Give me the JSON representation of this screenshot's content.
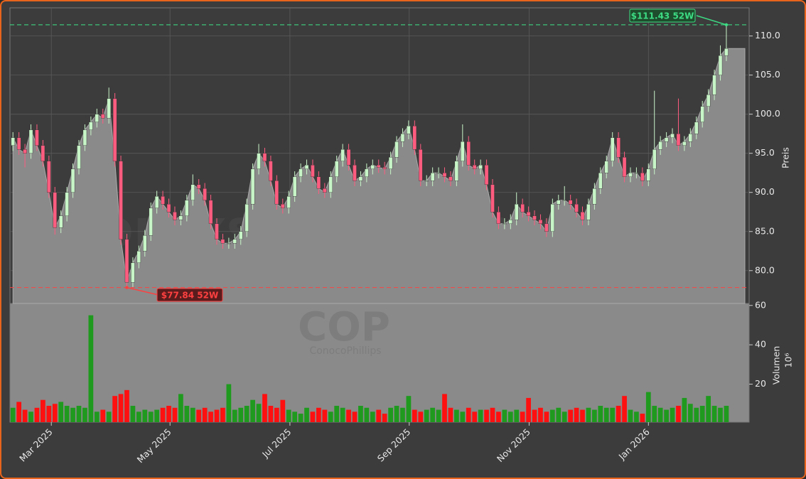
{
  "chart_data": {
    "type": "candlestick",
    "watermark": "forexsignale.trade",
    "symbol": "COP",
    "company": "ConocoPhillips",
    "y_label": "Preis",
    "y2_label": "Volumen",
    "y2_multiplier": "10⁶",
    "up_color": "#c8f5c8",
    "down_color": "#ff5c80",
    "volume_up_color": "#1f9a1f",
    "volume_down_color": "#ff1010",
    "area_color": "#8a8a8a",
    "grid": true,
    "xlim": [
      -0.5,
      122.8
    ],
    "xticks": [
      {
        "value": 6.4,
        "label": "Mar 2025"
      },
      {
        "value": 26.2,
        "label": "May 2025"
      },
      {
        "value": 46.2,
        "label": "Jul 2025"
      },
      {
        "value": 66.1,
        "label": "Sep 2025"
      },
      {
        "value": 86.1,
        "label": "Nov 2025"
      },
      {
        "value": 106,
        "label": "Jan 2026"
      }
    ],
    "ylim": [
      75.8,
      113.6
    ],
    "yticks": [
      {
        "value": 80,
        "label": "80.0"
      },
      {
        "value": 85,
        "label": "85.0"
      },
      {
        "value": 90,
        "label": "90.0"
      },
      {
        "value": 95,
        "label": "95.0"
      },
      {
        "value": 100,
        "label": "100.0"
      },
      {
        "value": 105,
        "label": "105.0"
      },
      {
        "value": 110,
        "label": "110.0"
      }
    ],
    "y2lim": [
      0.7,
      61
    ],
    "y2ticks": [
      20,
      40,
      60
    ],
    "annotations": [
      {
        "text": "$111.43 52W",
        "value": 111.43,
        "color": "#3ddc84"
      },
      {
        "text": "$77.84 52W",
        "value": 77.84,
        "color": "#ff4040"
      }
    ],
    "open": [
      96,
      97,
      95.5,
      95,
      98,
      96,
      94,
      90,
      85.5,
      87,
      90,
      93,
      96,
      98,
      99,
      100,
      99.5,
      102,
      94,
      84,
      78.5,
      81,
      82.5,
      84.5,
      88,
      89.5,
      88.5,
      87.5,
      86.5,
      87,
      89,
      91,
      90.5,
      89,
      86,
      84,
      83.5,
      83.5,
      84,
      85,
      88.5,
      93,
      95,
      94,
      91.5,
      88.5,
      88,
      89.5,
      92,
      93,
      93.5,
      92,
      90.5,
      90,
      92,
      94,
      95.5,
      93.5,
      91.5,
      92,
      93,
      93.5,
      93.2,
      93,
      94.5,
      96.5,
      97.5,
      98.5,
      95.5,
      91.5,
      91.5,
      92.5,
      92.5,
      92,
      91.5,
      94,
      96.5,
      93.5,
      93,
      93.5,
      91,
      87.5,
      86,
      86,
      86.5,
      88.5,
      87.5,
      87,
      86.5,
      86,
      85,
      88.5,
      89,
      89,
      88.5,
      87.5,
      86.5,
      88.5,
      90.5,
      92.5,
      94,
      97,
      94.5,
      92,
      92.5,
      92.5,
      91.5,
      93,
      95.5,
      96.5,
      97,
      97.5,
      96,
      96.5,
      97.5,
      99,
      101,
      102.5,
      105,
      107.5
    ],
    "high": [
      97.7,
      97.7,
      96.2,
      98.7,
      98.7,
      96.7,
      94.7,
      90.7,
      87.7,
      90.7,
      93.7,
      96.7,
      98.7,
      99.7,
      100.7,
      100.7,
      103.4,
      102.7,
      94.7,
      84.7,
      81.7,
      83.2,
      85.2,
      88.7,
      90.2,
      90.2,
      89.2,
      88.2,
      87.7,
      89.7,
      92.3,
      91.7,
      91.2,
      89.7,
      86.7,
      84.7,
      84.2,
      84.7,
      85.7,
      89.2,
      93.7,
      96.2,
      95.7,
      94.7,
      92.2,
      89.2,
      90.2,
      92.7,
      93.7,
      94.2,
      94.2,
      92.7,
      91.2,
      92.7,
      94.7,
      96.2,
      96.2,
      94.2,
      92.7,
      93.7,
      94.2,
      94.2,
      93.9,
      95.2,
      97.2,
      98.2,
      99.2,
      99.2,
      96.2,
      92.2,
      93.2,
      93.2,
      93.2,
      92.7,
      94.7,
      98.7,
      97.2,
      94.2,
      94.2,
      94.2,
      91.7,
      88.2,
      86.7,
      87.2,
      90,
      89.2,
      88.2,
      87.7,
      87.2,
      86.7,
      89.2,
      89.7,
      90.8,
      89.7,
      89.2,
      88.2,
      89.2,
      91.2,
      93.2,
      94.7,
      97.7,
      97.7,
      95.2,
      93.2,
      93.2,
      93.2,
      93.7,
      103,
      97.2,
      97.7,
      98.2,
      102,
      97.2,
      98.2,
      99.7,
      101.7,
      103.2,
      105.7,
      108.8,
      111.43
    ],
    "low": [
      95.3,
      94.8,
      93.2,
      94.3,
      95.3,
      93.3,
      89.3,
      84.6,
      84.8,
      86.3,
      89.3,
      92.3,
      95.3,
      97.3,
      98.3,
      98.8,
      98.8,
      93.3,
      83.3,
      77.84,
      77.9,
      80.3,
      81.8,
      83.8,
      87.3,
      87.8,
      86.8,
      85.8,
      85.8,
      86.3,
      88.3,
      89.8,
      88.3,
      85.3,
      83.3,
      82.8,
      82.8,
      82.8,
      83.3,
      84.3,
      87.8,
      92.3,
      93.3,
      90.8,
      87.8,
      87.3,
      87.3,
      88.8,
      91.3,
      92.3,
      91.3,
      89.8,
      89.3,
      89.3,
      91.3,
      93.3,
      92.8,
      90.8,
      90.8,
      91.3,
      92.3,
      92.5,
      92.3,
      92.3,
      93.8,
      95.8,
      96.8,
      94.8,
      90.8,
      90.8,
      90.8,
      91.8,
      91.3,
      90.8,
      90.8,
      93.3,
      92.8,
      92.3,
      92.3,
      90.3,
      86.8,
      85.3,
      85.3,
      85.3,
      85.8,
      86.8,
      86.3,
      85.8,
      85.3,
      84.3,
      84.3,
      87.8,
      88.3,
      87.8,
      86.8,
      85.8,
      85.8,
      87.8,
      89.8,
      91.8,
      93.3,
      93.8,
      91.3,
      91.3,
      91.8,
      90.8,
      90.8,
      92.3,
      94.8,
      95.8,
      96.3,
      95.3,
      95.3,
      95.8,
      96.8,
      98.3,
      100.3,
      101.8,
      104.3,
      106.8
    ],
    "close": [
      97,
      95.5,
      95,
      98,
      96,
      94,
      90,
      85.5,
      87,
      90,
      93,
      96,
      98,
      99,
      100,
      99.5,
      102,
      94,
      84,
      78.5,
      81,
      82.5,
      84.5,
      88,
      89.5,
      88.5,
      87.5,
      86.5,
      87,
      89,
      91,
      90.5,
      89,
      86,
      84,
      83.5,
      83.5,
      84,
      85,
      88.5,
      93,
      95,
      94,
      91.5,
      88.5,
      88,
      89.5,
      92,
      93,
      93.5,
      92,
      90.5,
      90,
      92,
      94,
      95.5,
      93.5,
      91.5,
      92,
      93,
      93.5,
      93.2,
      93,
      94.5,
      96.5,
      97.5,
      98.5,
      95.5,
      91.5,
      91.5,
      92.5,
      92.5,
      92,
      91.5,
      94,
      96.5,
      93.5,
      93,
      93.5,
      91,
      87.5,
      86,
      86,
      86.5,
      88.5,
      87.5,
      87,
      86.5,
      86,
      85,
      88.5,
      89,
      89,
      88.5,
      87.5,
      86.5,
      88.5,
      90.5,
      92.5,
      94,
      97,
      94.5,
      92,
      92.5,
      92.5,
      91.5,
      93,
      95.5,
      96.5,
      97,
      97.5,
      96,
      96.5,
      97.5,
      99,
      101,
      102.5,
      105,
      107.5,
      108.4
    ],
    "volume": [
      8,
      11,
      7,
      6,
      8,
      12,
      9,
      10,
      11,
      9,
      8,
      9,
      8,
      55,
      6,
      7,
      6,
      14,
      15,
      17,
      9,
      6,
      7,
      6,
      7,
      8,
      9,
      8,
      15,
      9,
      8,
      7,
      8,
      6,
      7,
      8,
      20,
      7,
      8,
      9,
      12,
      10,
      15,
      9,
      8,
      12,
      7,
      6,
      5,
      8,
      6,
      8,
      7,
      6,
      9,
      8,
      7,
      6,
      9,
      8,
      6,
      7,
      5,
      8,
      9,
      8,
      14,
      7,
      6,
      7,
      8,
      7,
      15,
      8,
      7,
      6,
      8,
      6,
      7,
      7,
      8,
      6,
      7,
      6,
      7,
      6,
      13,
      7,
      8,
      6,
      7,
      8,
      6,
      7,
      8,
      7,
      8,
      7,
      9,
      8,
      8,
      9,
      14,
      7,
      6,
      5,
      16,
      9,
      8,
      7,
      8,
      9,
      13,
      10,
      8,
      9,
      14,
      9,
      8,
      9
    ]
  }
}
